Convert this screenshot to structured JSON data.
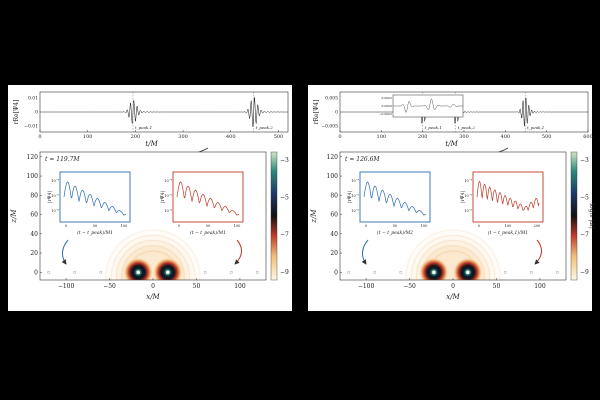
{
  "colors": {
    "background": "#000000",
    "panel": "#ffffff",
    "blue": "#2e6db4",
    "red": "#c0392b",
    "marker": "#9a9a9a"
  },
  "panels": [
    {
      "waveform": {
        "ylabel": "rRe[Ψ4]",
        "xlabel": "t/M",
        "yticks": [
          "0.01",
          "0",
          "−0.01"
        ],
        "xticks": [
          "0",
          "100",
          "200",
          "300",
          "400",
          "500"
        ],
        "xlim": [
          0,
          520
        ],
        "ylim": [
          -0.012,
          0.012
        ],
        "peak_labels": [
          "t_peak,1",
          "t_peak,2"
        ],
        "peaks_t": [
          195,
          448
        ]
      },
      "time_label": "t = 119.7M",
      "map": {
        "xlabel": "x/M",
        "ylabel": "z/M",
        "xticks": [
          "−100",
          "−50",
          "0",
          "50",
          "100"
        ],
        "yticks": [
          "0",
          "20",
          "40",
          "60",
          "80",
          "100",
          "120"
        ],
        "xlim": [
          -130,
          130
        ],
        "ylim": [
          -8,
          125
        ],
        "colorbar_ticks": [
          "−3",
          "−5",
          "−7",
          "−9"
        ],
        "colorbar_label": ""
      },
      "inset_left": {
        "ylabel": "|rΨ4|",
        "yticks": [
          "10⁻⁴",
          "10⁻⁶",
          "10⁻⁸"
        ],
        "xticks": [
          "0",
          "50",
          "100"
        ],
        "xlabel": "(t − t_peak)/M1"
      },
      "inset_right": {
        "ylabel": "|rΨ̃4|",
        "yticks": [
          "10⁻⁴",
          "10⁻⁶",
          "10⁻⁸"
        ],
        "xticks": [
          "0",
          "50",
          "100"
        ],
        "xlabel": "(t − t_peak)/M1"
      },
      "bh_x": [
        -17,
        17
      ]
    },
    {
      "waveform": {
        "ylabel": "rRe[Ψ4]",
        "xlabel": "t/M",
        "yticks": [
          "0.005",
          "0",
          "−0.005"
        ],
        "xticks": [
          "0",
          "100",
          "200",
          "300",
          "400",
          "500",
          "600"
        ],
        "xlim": [
          0,
          600
        ],
        "ylim": [
          -0.008,
          0.008
        ],
        "peak_labels": [
          "t_peak,1",
          "t_peak,2",
          "t_peak,1"
        ],
        "peaks_t": [
          200,
          280,
          448
        ],
        "inner_yticks": [
          "0.0002",
          "0.0000",
          "−0.0002"
        ]
      },
      "time_label": "t = 126.6M",
      "map": {
        "xlabel": "x/M",
        "ylabel": "z/M",
        "xticks": [
          "−100",
          "−50",
          "0",
          "50",
          "100"
        ],
        "yticks": [
          "0",
          "20",
          "40",
          "60",
          "80",
          "100",
          "120"
        ],
        "xlim": [
          -130,
          130
        ],
        "ylim": [
          -8,
          125
        ],
        "colorbar_ticks": [
          "−3",
          "−5",
          "−7",
          "−9"
        ],
        "colorbar_label": "log₁₀ |𝒦|"
      },
      "inset_left": {
        "ylabel": "|rΨ4|",
        "yticks": [
          "10⁻⁴",
          "10⁻⁶",
          "10⁻⁸"
        ],
        "xticks": [
          "0",
          "50",
          "100"
        ],
        "xlabel": "(t − t_peak)/M2"
      },
      "inset_right": {
        "ylabel": "|rΨ̃4|",
        "yticks": [
          "10⁻⁴",
          "10⁻⁶",
          "10⁻⁸"
        ],
        "xticks": [
          "0",
          "100",
          "200"
        ],
        "xlabel": "(t − t_peak,1)/M1"
      },
      "bh_x": [
        -22,
        17
      ]
    }
  ]
}
